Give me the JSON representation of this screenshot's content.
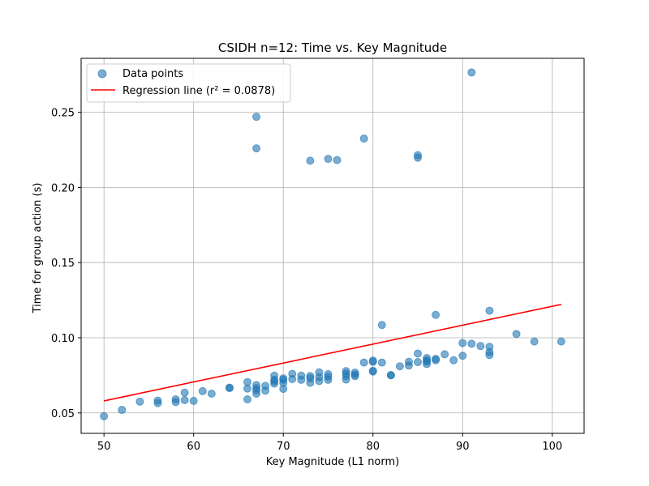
{
  "chart_data": {
    "type": "scatter",
    "title": "CSIDH n=12: Time vs. Key Magnitude",
    "xlabel": "Key Magnitude (L1 norm)",
    "ylabel": "Time for group action (s)",
    "xlim": [
      47.45,
      103.55
    ],
    "ylim": [
      0.0364,
      0.2859
    ],
    "xticks": [
      50,
      60,
      70,
      80,
      90,
      100
    ],
    "yticks": [
      0.05,
      0.1,
      0.15,
      0.2,
      0.25
    ],
    "ytick_labels": [
      "0.05",
      "0.10",
      "0.15",
      "0.20",
      "0.25"
    ],
    "grid": true,
    "legend_position": "top-left",
    "colors": {
      "points": "#1f77b4",
      "regression": "#ff0000",
      "grid": "#b0b0b0"
    },
    "series": [
      {
        "name": "Data points",
        "kind": "scatter",
        "points": [
          [
            50,
            0.0478
          ],
          [
            52,
            0.052
          ],
          [
            54,
            0.0575
          ],
          [
            56,
            0.0582
          ],
          [
            56,
            0.0565
          ],
          [
            58,
            0.0572
          ],
          [
            58,
            0.059
          ],
          [
            59,
            0.0585
          ],
          [
            59,
            0.0635
          ],
          [
            60,
            0.058
          ],
          [
            61,
            0.0645
          ],
          [
            62,
            0.0628
          ],
          [
            64,
            0.0665
          ],
          [
            64,
            0.0668
          ],
          [
            66,
            0.059
          ],
          [
            66,
            0.0662
          ],
          [
            66,
            0.0705
          ],
          [
            67,
            0.0628
          ],
          [
            67,
            0.065
          ],
          [
            67,
            0.0665
          ],
          [
            67,
            0.0685
          ],
          [
            67,
            0.247
          ],
          [
            67,
            0.226
          ],
          [
            68,
            0.0648
          ],
          [
            68,
            0.068
          ],
          [
            69,
            0.0695
          ],
          [
            69,
            0.071
          ],
          [
            69,
            0.072
          ],
          [
            69,
            0.0748
          ],
          [
            70,
            0.066
          ],
          [
            70,
            0.07
          ],
          [
            70,
            0.072
          ],
          [
            70,
            0.073
          ],
          [
            71,
            0.0725
          ],
          [
            71,
            0.076
          ],
          [
            72,
            0.072
          ],
          [
            72,
            0.0748
          ],
          [
            73,
            0.07
          ],
          [
            73,
            0.073
          ],
          [
            73,
            0.0745
          ],
          [
            73,
            0.2178
          ],
          [
            74,
            0.0712
          ],
          [
            74,
            0.0738
          ],
          [
            74,
            0.077
          ],
          [
            75,
            0.072
          ],
          [
            75,
            0.074
          ],
          [
            75,
            0.0758
          ],
          [
            75,
            0.219
          ],
          [
            76,
            0.2182
          ],
          [
            77,
            0.0722
          ],
          [
            77,
            0.0745
          ],
          [
            77,
            0.0762
          ],
          [
            77,
            0.0778
          ],
          [
            78,
            0.0745
          ],
          [
            78,
            0.0755
          ],
          [
            78,
            0.0768
          ],
          [
            79,
            0.0835
          ],
          [
            79,
            0.2325
          ],
          [
            80,
            0.0775
          ],
          [
            80,
            0.078
          ],
          [
            80,
            0.084
          ],
          [
            80,
            0.0848
          ],
          [
            81,
            0.0835
          ],
          [
            81,
            0.1085
          ],
          [
            82,
            0.075
          ],
          [
            82,
            0.0752
          ],
          [
            83,
            0.081
          ],
          [
            84,
            0.0815
          ],
          [
            84,
            0.084
          ],
          [
            85,
            0.0838
          ],
          [
            85,
            0.0895
          ],
          [
            85,
            0.2198
          ],
          [
            85,
            0.2215
          ],
          [
            86,
            0.0825
          ],
          [
            86,
            0.0842
          ],
          [
            86,
            0.085
          ],
          [
            86,
            0.0865
          ],
          [
            87,
            0.085
          ],
          [
            87,
            0.086
          ],
          [
            87,
            0.1152
          ],
          [
            88,
            0.089
          ],
          [
            89,
            0.085
          ],
          [
            90,
            0.088
          ],
          [
            90,
            0.0965
          ],
          [
            91,
            0.096
          ],
          [
            91,
            0.2765
          ],
          [
            92,
            0.0945
          ],
          [
            93,
            0.0885
          ],
          [
            93,
            0.0905
          ],
          [
            93,
            0.094
          ],
          [
            93,
            0.118
          ],
          [
            96,
            0.1025
          ],
          [
            98,
            0.0975
          ],
          [
            101,
            0.0975
          ]
        ]
      },
      {
        "name": "Regression line (r² = 0.0878)",
        "kind": "line",
        "x": [
          50,
          101
        ],
        "y": [
          0.058,
          0.1222
        ]
      }
    ]
  }
}
